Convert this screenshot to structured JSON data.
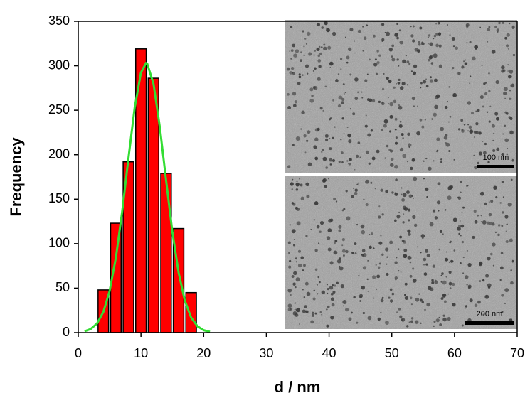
{
  "chart_data": {
    "type": "histogram",
    "x_label": "d / nm",
    "y_label": "Frequency",
    "bins": [
      3,
      5,
      7,
      9,
      11,
      13,
      15,
      17,
      19
    ],
    "values": [
      48,
      123,
      192,
      319,
      286,
      179,
      117,
      45
    ],
    "color": "#ff0000",
    "fit": {
      "x": [
        1,
        2,
        3,
        4,
        5,
        6,
        7,
        8,
        9,
        10,
        10.8,
        11,
        12,
        13,
        14,
        15,
        16,
        17,
        18,
        19,
        20,
        21
      ],
      "values": [
        1.5,
        4.1,
        10.3,
        23.2,
        46.8,
        84.2,
        135.8,
        196,
        253,
        292.4,
        303,
        302.3,
        279.7,
        231.5,
        171.5,
        113.7,
        67.5,
        35.8,
        17,
        7.2,
        2.7,
        0.9
      ],
      "color": "#33dd33"
    },
    "xlim": [
      0,
      70
    ],
    "ylim": [
      0,
      350
    ],
    "xticks": [
      0,
      10,
      20,
      30,
      40,
      50,
      60,
      70
    ],
    "yticks": [
      0,
      50,
      100,
      150,
      200,
      250,
      300,
      350
    ],
    "annotations": [
      "100 nm",
      "200 nm"
    ]
  }
}
